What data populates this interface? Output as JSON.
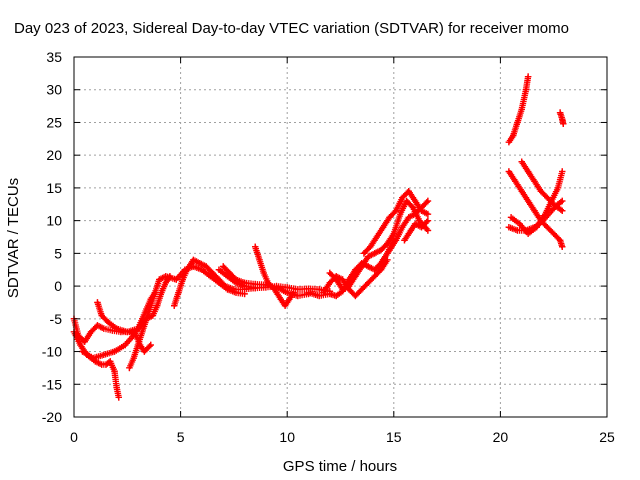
{
  "chart_data": {
    "type": "scatter",
    "title": "Day 023 of 2023, Sidereal Day-to-day VTEC variation (SDTVAR) for receiver momo",
    "xlabel": "GPS time / hours",
    "ylabel": "SDTVAR / TECUs",
    "xlim": [
      0,
      25
    ],
    "ylim": [
      -20,
      35
    ],
    "xticks": [
      0,
      5,
      10,
      15,
      20,
      25
    ],
    "yticks": [
      -20,
      -15,
      -10,
      -5,
      0,
      5,
      10,
      15,
      20,
      25,
      30,
      35
    ],
    "grid": true,
    "marker": "+",
    "color": "#ff0000",
    "series": [
      {
        "points": [
          [
            0.0,
            -7.0
          ],
          [
            0.3,
            -9.0
          ],
          [
            0.6,
            -10.5
          ],
          [
            1.0,
            -11.5
          ],
          [
            1.3,
            -12.0
          ],
          [
            1.5,
            -12.0
          ],
          [
            1.7,
            -11.5
          ],
          [
            1.9,
            -13.0
          ],
          [
            2.0,
            -15.5
          ],
          [
            2.1,
            -17.0
          ]
        ]
      },
      {
        "points": [
          [
            0.0,
            -5.0
          ],
          [
            0.2,
            -7.5
          ],
          [
            0.5,
            -8.5
          ],
          [
            0.8,
            -7.0
          ],
          [
            1.1,
            -6.0
          ],
          [
            1.4,
            -6.5
          ],
          [
            1.8,
            -6.8
          ],
          [
            2.2,
            -7.0
          ],
          [
            2.6,
            -7.0
          ],
          [
            2.9,
            -7.5
          ],
          [
            3.1,
            -9.0
          ],
          [
            3.3,
            -10.0
          ],
          [
            3.6,
            -9.0
          ]
        ]
      },
      {
        "points": [
          [
            1.1,
            -2.5
          ],
          [
            1.3,
            -4.5
          ],
          [
            1.6,
            -5.5
          ],
          [
            2.0,
            -6.5
          ],
          [
            2.5,
            -7.0
          ],
          [
            3.0,
            -6.5
          ],
          [
            3.2,
            -5.0
          ],
          [
            3.4,
            -3.5
          ],
          [
            3.6,
            -2.0
          ],
          [
            3.8,
            -1.0
          ]
        ]
      },
      {
        "points": [
          [
            0.4,
            -10.0
          ],
          [
            0.9,
            -11.0
          ],
          [
            1.4,
            -10.5
          ],
          [
            1.9,
            -10.0
          ],
          [
            2.4,
            -9.0
          ],
          [
            2.8,
            -7.5
          ],
          [
            3.1,
            -6.0
          ],
          [
            3.4,
            -5.0
          ],
          [
            3.7,
            -4.5
          ],
          [
            3.9,
            -3.0
          ],
          [
            4.1,
            -1.0
          ],
          [
            4.3,
            0.5
          ],
          [
            4.5,
            1.5
          ]
        ]
      },
      {
        "points": [
          [
            2.6,
            -12.5
          ],
          [
            2.8,
            -11.0
          ],
          [
            3.0,
            -9.0
          ],
          [
            3.2,
            -7.0
          ],
          [
            3.4,
            -5.0
          ],
          [
            3.6,
            -3.0
          ],
          [
            3.8,
            -1.0
          ],
          [
            4.0,
            1.0
          ],
          [
            4.3,
            1.5
          ],
          [
            4.8,
            1.0
          ],
          [
            5.2,
            2.5
          ],
          [
            5.6,
            3.0
          ],
          [
            6.0,
            2.5
          ],
          [
            6.4,
            1.5
          ],
          [
            6.8,
            0.5
          ],
          [
            7.2,
            -0.5
          ],
          [
            7.6,
            -1.0
          ],
          [
            8.0,
            -1.2
          ]
        ]
      },
      {
        "points": [
          [
            4.7,
            -3.0
          ],
          [
            4.9,
            -1.0
          ],
          [
            5.1,
            1.0
          ],
          [
            5.3,
            2.5
          ],
          [
            5.6,
            4.0
          ],
          [
            5.9,
            3.5
          ],
          [
            6.2,
            3.0
          ],
          [
            6.5,
            2.0
          ],
          [
            6.8,
            1.0
          ],
          [
            7.1,
            0.0
          ],
          [
            7.5,
            -0.5
          ],
          [
            8.0,
            -0.5
          ],
          [
            8.5,
            -0.3
          ]
        ]
      },
      {
        "points": [
          [
            6.8,
            2.5
          ],
          [
            7.2,
            1.5
          ],
          [
            7.6,
            0.5
          ],
          [
            8.0,
            0.0
          ],
          [
            8.5,
            -0.3
          ],
          [
            9.0,
            -0.2
          ],
          [
            9.5,
            0.0
          ],
          [
            10.0,
            -0.2
          ],
          [
            10.5,
            -0.5
          ],
          [
            11.0,
            -0.4
          ],
          [
            11.5,
            -0.5
          ],
          [
            12.0,
            -0.8
          ]
        ]
      },
      {
        "points": [
          [
            7.0,
            3.0
          ],
          [
            7.3,
            2.0
          ],
          [
            7.6,
            1.0
          ],
          [
            8.0,
            0.5
          ],
          [
            8.5,
            0.3
          ],
          [
            9.0,
            0.2
          ],
          [
            9.5,
            -0.2
          ],
          [
            10.0,
            -1.0
          ],
          [
            10.5,
            -1.5
          ],
          [
            11.0,
            -1.2
          ]
        ]
      },
      {
        "points": [
          [
            8.5,
            6.0
          ],
          [
            8.7,
            4.0
          ],
          [
            8.9,
            2.0
          ],
          [
            9.1,
            0.5
          ],
          [
            9.4,
            -0.5
          ],
          [
            9.7,
            -2.0
          ],
          [
            9.9,
            -3.0
          ],
          [
            10.1,
            -2.0
          ],
          [
            10.3,
            -1.0
          ]
        ]
      },
      {
        "points": [
          [
            11.0,
            -1.0
          ],
          [
            11.5,
            -1.5
          ],
          [
            12.0,
            -1.2
          ],
          [
            12.3,
            -1.5
          ],
          [
            12.6,
            -0.8
          ],
          [
            12.9,
            1.0
          ],
          [
            13.2,
            2.5
          ],
          [
            13.5,
            3.5
          ],
          [
            13.8,
            3.0
          ],
          [
            14.1,
            2.5
          ],
          [
            14.4,
            3.5
          ],
          [
            14.7,
            5.0
          ],
          [
            15.0,
            7.0
          ]
        ]
      },
      {
        "points": [
          [
            11.7,
            -1.0
          ],
          [
            12.0,
            0.5
          ],
          [
            12.3,
            1.5
          ],
          [
            12.6,
            1.0
          ],
          [
            12.9,
            -0.5
          ],
          [
            13.2,
            -1.5
          ],
          [
            13.5,
            -0.5
          ],
          [
            13.8,
            0.5
          ],
          [
            14.1,
            1.5
          ],
          [
            14.4,
            2.5
          ],
          [
            14.7,
            4.0
          ]
        ]
      },
      {
        "points": [
          [
            12.0,
            2.0
          ],
          [
            12.3,
            1.0
          ],
          [
            12.6,
            -0.5
          ],
          [
            12.9,
            0.0
          ],
          [
            13.2,
            1.5
          ],
          [
            13.5,
            3.0
          ],
          [
            13.8,
            4.5
          ],
          [
            14.1,
            5.0
          ],
          [
            14.4,
            5.5
          ],
          [
            14.7,
            6.5
          ],
          [
            15.0,
            8.0
          ],
          [
            15.3,
            11.0
          ],
          [
            15.6,
            13.0
          ],
          [
            15.9,
            12.0
          ],
          [
            16.2,
            10.0
          ],
          [
            16.6,
            8.5
          ]
        ]
      },
      {
        "points": [
          [
            13.6,
            5.0
          ],
          [
            13.9,
            6.0
          ],
          [
            14.2,
            7.5
          ],
          [
            14.5,
            9.0
          ],
          [
            14.8,
            10.5
          ],
          [
            15.1,
            11.5
          ],
          [
            15.4,
            13.5
          ],
          [
            15.7,
            14.5
          ],
          [
            16.0,
            13.0
          ],
          [
            16.3,
            11.5
          ],
          [
            16.6,
            11.0
          ]
        ]
      },
      {
        "points": [
          [
            14.5,
            4.0
          ],
          [
            14.8,
            5.5
          ],
          [
            15.1,
            7.0
          ],
          [
            15.4,
            9.0
          ],
          [
            15.7,
            10.5
          ],
          [
            16.0,
            11.0
          ],
          [
            16.3,
            12.0
          ],
          [
            16.6,
            13.0
          ]
        ]
      },
      {
        "points": [
          [
            15.5,
            7.0
          ],
          [
            15.8,
            8.5
          ],
          [
            16.0,
            9.5
          ],
          [
            16.3,
            9.0
          ],
          [
            16.6,
            10.0
          ]
        ]
      },
      {
        "points": [
          [
            20.4,
            17.5
          ],
          [
            20.7,
            16.0
          ],
          [
            21.0,
            14.5
          ],
          [
            21.3,
            13.0
          ],
          [
            21.6,
            11.5
          ],
          [
            21.9,
            10.0
          ],
          [
            22.2,
            9.0
          ],
          [
            22.5,
            8.0
          ],
          [
            22.8,
            7.0
          ],
          [
            22.9,
            6.0
          ]
        ]
      },
      {
        "points": [
          [
            20.4,
            22.0
          ],
          [
            20.6,
            23.0
          ],
          [
            20.8,
            25.0
          ],
          [
            21.0,
            27.0
          ],
          [
            21.2,
            30.0
          ],
          [
            21.3,
            32.0
          ]
        ]
      },
      {
        "points": [
          [
            21.0,
            19.0
          ],
          [
            21.3,
            17.5
          ],
          [
            21.6,
            16.0
          ],
          [
            21.9,
            14.5
          ],
          [
            22.2,
            13.5
          ],
          [
            22.5,
            12.5
          ],
          [
            22.7,
            12.0
          ],
          [
            22.9,
            11.5
          ]
        ]
      },
      {
        "points": [
          [
            20.4,
            9.0
          ],
          [
            20.8,
            8.5
          ],
          [
            21.2,
            8.5
          ],
          [
            21.6,
            9.0
          ],
          [
            22.0,
            10.0
          ],
          [
            22.4,
            11.5
          ],
          [
            22.7,
            12.5
          ],
          [
            22.9,
            13.0
          ]
        ]
      },
      {
        "points": [
          [
            20.5,
            10.5
          ],
          [
            20.9,
            9.5
          ],
          [
            21.3,
            8.0
          ],
          [
            21.7,
            9.0
          ],
          [
            22.1,
            11.0
          ],
          [
            22.4,
            13.0
          ],
          [
            22.7,
            15.0
          ],
          [
            22.9,
            17.5
          ]
        ]
      },
      {
        "points": [
          [
            22.8,
            26.5
          ],
          [
            22.9,
            25.5
          ],
          [
            22.95,
            24.8
          ]
        ]
      }
    ]
  }
}
